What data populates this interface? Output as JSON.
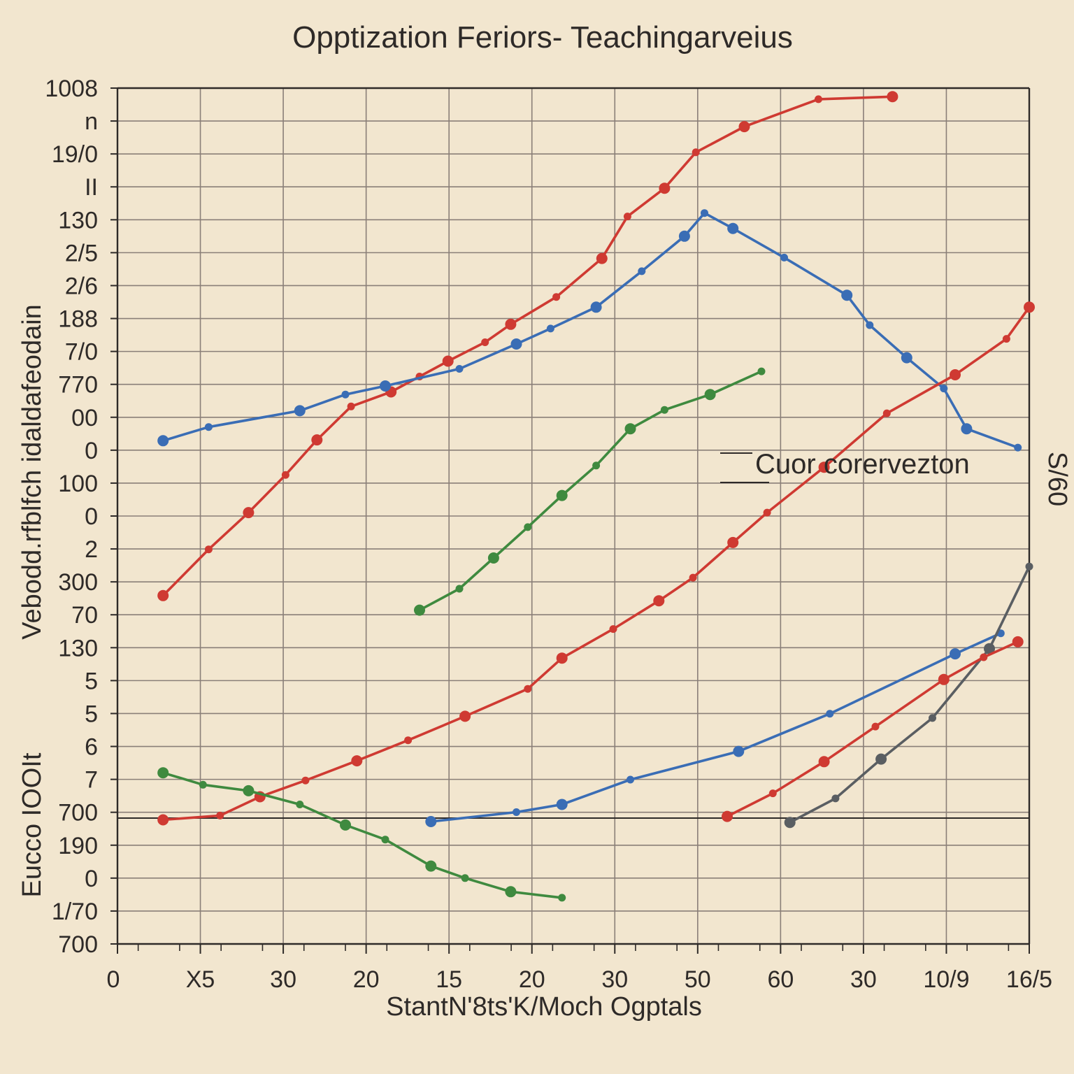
{
  "chart_data": {
    "type": "line",
    "title": "Opptization Feriors- Teachingarveius",
    "xlabel": "StantN'8ts'K/Moch Ogptals",
    "ylabel_upper": "Vebodd.rfblfch idaldafeodain",
    "ylabel_lower": "Eucco IOOIt",
    "right_label": "S/60",
    "annotation": "Cuor corervezton",
    "x_tick_labels": [
      "0",
      "X5",
      "30",
      "20",
      "15",
      "20",
      "30",
      "50",
      "60",
      "30",
      "10/9",
      "16/5"
    ],
    "y_tick_labels": [
      "1008",
      "n",
      "19/0",
      "II",
      "130",
      "2/5",
      "2/6",
      "188",
      "7/0",
      "770",
      "00",
      "0",
      "100",
      "0",
      "2",
      "300",
      "70",
      "130",
      "5",
      "5",
      "6",
      "7",
      "700",
      "190",
      "0",
      "1/70",
      "700"
    ],
    "x_range": [
      0,
      16
    ],
    "y_range": [
      0,
      100
    ],
    "grid": true,
    "legend": "none",
    "colors": {
      "red": "#cf3a32",
      "blue": "#3a6db5",
      "green": "#3f8a3f",
      "gray": "#5a5e62",
      "axis": "#2e2a28"
    },
    "series": [
      {
        "color": "red",
        "x": [
          0.8,
          1.6,
          2.3,
          2.95,
          3.5,
          4.1,
          4.8,
          5.3,
          5.8,
          6.45,
          6.9,
          7.7,
          8.5,
          8.95,
          9.6,
          10.15,
          11.0,
          12.3,
          13.6
        ],
        "y": [
          40.7,
          46.1,
          50.4,
          54.8,
          58.9,
          62.8,
          64.5,
          66.3,
          68.1,
          70.3,
          72.4,
          75.6,
          80.1,
          85.0,
          88.3,
          92.5,
          95.5,
          98.7,
          99.0
        ]
      },
      {
        "color": "blue",
        "x": [
          0.8,
          1.6,
          3.2,
          4.0,
          4.7,
          6.0,
          7.0,
          7.6,
          8.4,
          9.2,
          9.95,
          10.3,
          10.8,
          11.7,
          12.8,
          13.2,
          13.85,
          14.5,
          14.9,
          15.8
        ],
        "y": [
          58.8,
          60.4,
          62.3,
          64.2,
          65.2,
          67.2,
          70.1,
          71.9,
          74.4,
          78.6,
          82.7,
          85.4,
          83.6,
          80.2,
          75.8,
          72.3,
          68.5,
          64.9,
          60.2,
          58.0
        ]
      },
      {
        "color": "green",
        "x": [
          5.3,
          6.0,
          6.6,
          7.2,
          7.8,
          8.4,
          9.0,
          9.6,
          10.4,
          11.3
        ],
        "y": [
          39.0,
          41.5,
          45.1,
          48.7,
          52.4,
          55.9,
          60.2,
          62.4,
          64.2,
          66.9
        ]
      },
      {
        "color": "red",
        "x": [
          0.8,
          1.8,
          2.5,
          3.3,
          4.2,
          5.1,
          6.1,
          7.2,
          7.8,
          8.7,
          9.5,
          10.1,
          10.8,
          11.4,
          12.4,
          13.5,
          14.7,
          15.6,
          16.0
        ],
        "y": [
          14.5,
          15.0,
          17.2,
          19.1,
          21.4,
          23.8,
          26.6,
          29.8,
          33.4,
          36.8,
          40.1,
          42.8,
          46.9,
          50.4,
          55.7,
          62.0,
          66.5,
          70.7,
          74.4
        ]
      },
      {
        "color": "blue",
        "x": [
          5.5,
          7.0,
          7.8,
          9.0,
          10.9,
          12.5,
          14.7,
          15.5
        ],
        "y": [
          14.3,
          15.4,
          16.3,
          19.2,
          22.5,
          26.9,
          33.9,
          36.3
        ]
      },
      {
        "color": "green",
        "x": [
          0.8,
          1.5,
          2.3,
          3.2,
          4.0,
          4.7,
          5.5,
          6.1,
          6.9,
          7.8
        ],
        "y": [
          20.0,
          18.6,
          17.9,
          16.3,
          13.9,
          12.2,
          9.1,
          7.7,
          6.1,
          5.4
        ]
      },
      {
        "color": "gray",
        "x": [
          11.8,
          12.6,
          13.4,
          14.3,
          15.3,
          16.0
        ],
        "y": [
          14.2,
          17.0,
          21.6,
          26.4,
          34.5,
          44.1
        ]
      },
      {
        "color": "red",
        "x": [
          10.7,
          11.5,
          12.4,
          13.3,
          14.5,
          15.2,
          15.8
        ],
        "y": [
          14.9,
          17.6,
          21.3,
          25.4,
          30.9,
          33.5,
          35.3
        ]
      }
    ]
  }
}
